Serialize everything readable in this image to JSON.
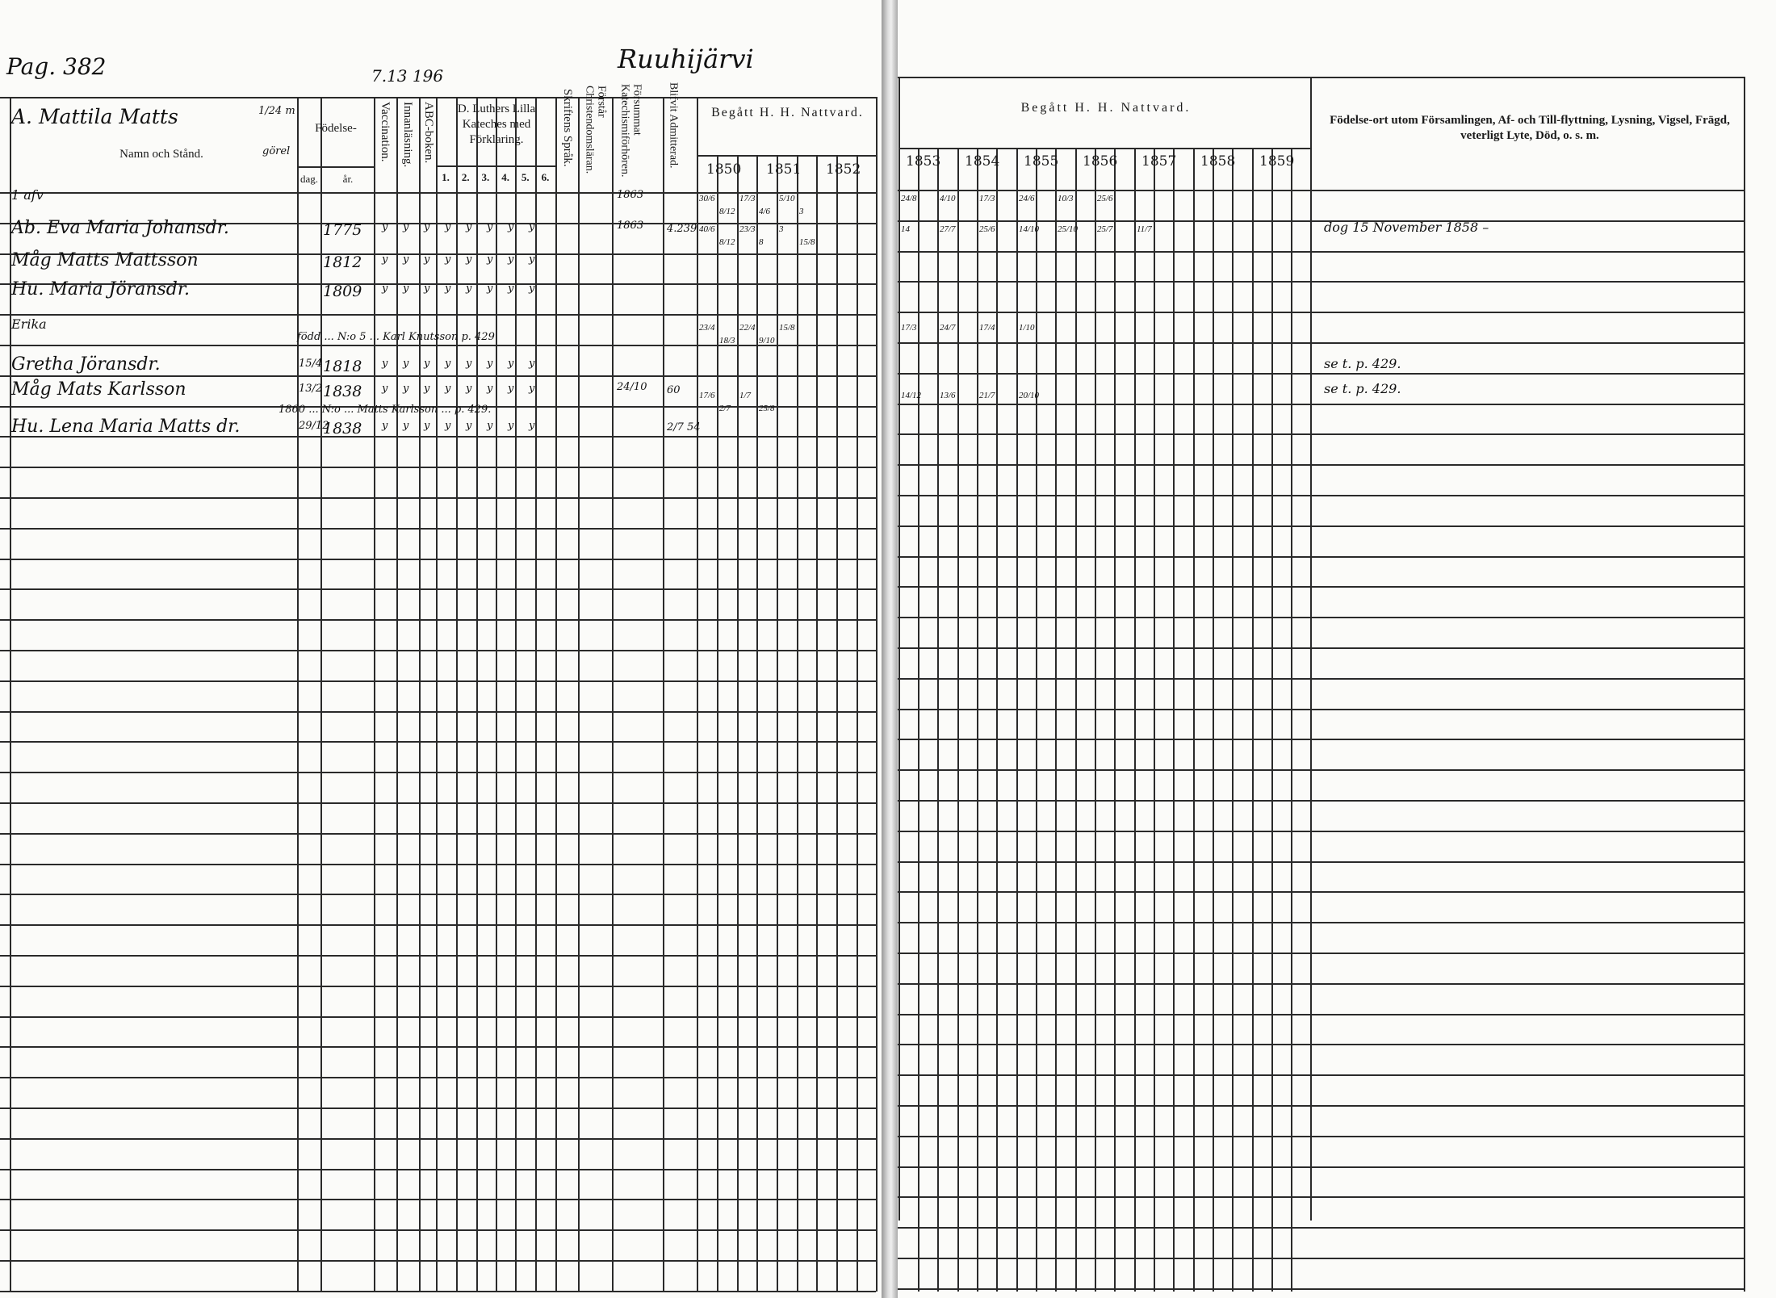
{
  "header": {
    "page_label": "Pag. 382",
    "village": "Ruuhijärvi",
    "ref_note": "7.13 196",
    "household": "A. Mattila Matts",
    "household_note_1": "1/24 m",
    "household_note_2": "görel"
  },
  "columns": {
    "name": "Namn och Stånd.",
    "birth": "Födelse-",
    "birth_day": "dag.",
    "birth_year": "år.",
    "vaccination": "Vaccination.",
    "innanlasning": "Innanläsning.",
    "abc": "ABC-boken.",
    "luther": "D. Luthers Lilla Kateches med Förklaring.",
    "luther_parts": [
      "1.",
      "2.",
      "3.",
      "4.",
      "5.",
      "6."
    ],
    "skriftens": "Skriftens Språk.",
    "christendom": "Förstår Christendomsläran.",
    "forsummat": "Försummat Katechismiförhören.",
    "admitterad": "Blifvit Admitterad.",
    "communion_left": "Begått H. H. Nattvard.",
    "communion_right": "Begått H. H. Nattvard.",
    "remarks": "Födelse-ort utom Församlingen, Af- och Till-flyttning, Lysning, Vigsel, Frägd, veterligt Lyte, Död, o. s. m.",
    "years_left": [
      "1850",
      "1851",
      "1852"
    ],
    "years_right": [
      "1853",
      "1854",
      "1855",
      "1856",
      "1857",
      "1858",
      "1859"
    ]
  },
  "entries": [
    {
      "name": "1 afv",
      "year": "",
      "day": "",
      "forsummat": "1863",
      "admit": "",
      "remark": ""
    },
    {
      "name": "Ab. Eva Maria Johansdr.",
      "year": "1775",
      "day": "",
      "forsummat": "1863",
      "admit": "4.239",
      "remark": "dog 15 November 1858 –"
    },
    {
      "name": "Måg Matts Mattsson",
      "year": "1812",
      "day": "",
      "forsummat": "",
      "admit": "",
      "remark": ""
    },
    {
      "name": "Hu. Maria Jöransdr.",
      "year": "1809",
      "day": "",
      "forsummat": "",
      "admit": "",
      "remark": ""
    },
    {
      "name": "Erika",
      "year": "",
      "day": "",
      "forsummat": "",
      "admit": "",
      "remark": ""
    },
    {
      "name": "Gretha Jöransdr.",
      "year": "1818",
      "day": "15/4",
      "forsummat": "",
      "admit": "",
      "remark": "se t. p. 429."
    },
    {
      "name": "Måg Mats Karlsson",
      "year": "1838",
      "day": "13/2",
      "forsummat": "24/10",
      "admit": "60",
      "remark": "se t. p. 429."
    },
    {
      "name": "Hu. Lena Maria Matts dr.",
      "year": "1838",
      "day": "29/12",
      "forsummat": "",
      "admit": "2/7 54",
      "remark": ""
    }
  ],
  "annotations": {
    "erika_note": "född ... N:o 5 ... Karl Knutsson p. 429",
    "karlsson_note": "1860 ... N:o ... Matts Karlsson ... p. 429."
  },
  "communion_marks": {
    "row1": [
      "30/6",
      "8/12",
      "17/3",
      "4/6",
      "5/10",
      "3",
      "24/8",
      "4/10",
      "17/3",
      "24/6",
      "10/3",
      "25/6"
    ],
    "row2": [
      "40/6",
      "8/12",
      "23/3",
      "8",
      "3",
      "15/8",
      "14",
      "27/7",
      "25/6",
      "14/10",
      "25/10",
      "25/7",
      "11/7"
    ],
    "row5": [
      "23/4",
      "18/3",
      "22/4",
      "9/10",
      "15/8",
      "17/3",
      "24/7",
      "17/4",
      "1/10"
    ],
    "row7": [
      "17/6",
      "2/7",
      "1/7",
      "25/8",
      "14/12",
      "13/6",
      "21/7",
      "20/10"
    ]
  },
  "colors": {
    "paper": "#fbfbf9",
    "ink": "#1a1a1a",
    "rule": "#2a2a2a"
  }
}
